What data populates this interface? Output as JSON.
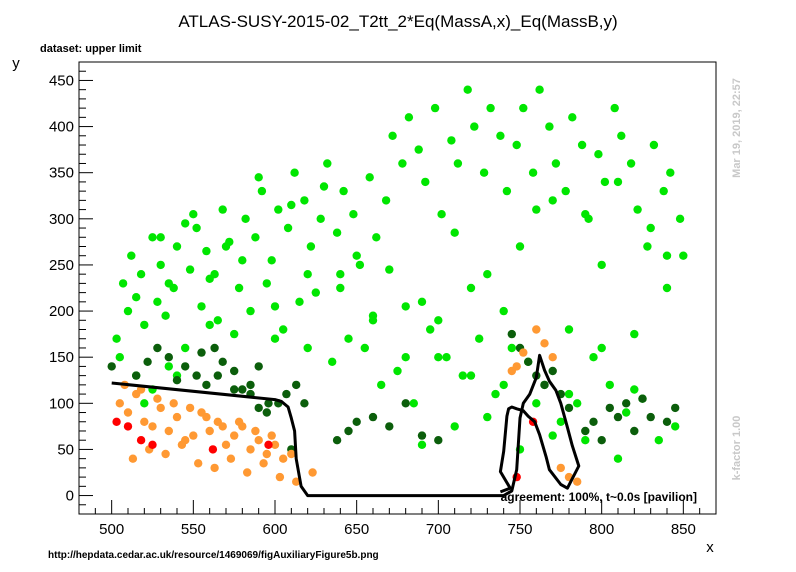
{
  "chart_data": {
    "type": "scatter",
    "title": "ATLAS-SUSY-2015-02_T2tt_2*Eq(MassA,x)_Eq(MassB,y)",
    "subtitle": "dataset: upper limit",
    "xlabel": "x",
    "ylabel": "y",
    "xlim": [
      480,
      870
    ],
    "ylim": [
      -20,
      470
    ],
    "xticks": [
      500,
      550,
      600,
      650,
      700,
      750,
      800,
      850
    ],
    "yticks": [
      0,
      50,
      100,
      150,
      200,
      250,
      300,
      350,
      400,
      450
    ],
    "grid": false,
    "legend": "none",
    "colors": {
      "bright_green": "#00e600",
      "dark_green": "#0b5e0b",
      "orange": "#ff9933",
      "red": "#ff0000",
      "contour": "#000000"
    },
    "series": [
      {
        "color": "bright_green",
        "x": [
          503,
          507,
          510,
          515,
          520,
          512,
          518,
          525,
          530,
          535,
          540,
          545,
          528,
          533,
          538,
          548,
          552,
          558,
          563,
          568,
          572,
          578,
          582,
          588,
          592,
          598,
          602,
          608,
          612,
          618,
          622,
          628,
          632,
          638,
          642,
          648,
          652,
          658,
          662,
          668,
          672,
          678,
          682,
          688,
          692,
          698,
          702,
          708,
          712,
          718,
          722,
          728,
          732,
          738,
          742,
          748,
          752,
          758,
          762,
          768,
          772,
          778,
          782,
          788,
          792,
          798,
          802,
          808,
          812,
          818,
          822,
          828,
          832,
          838,
          842,
          848,
          505,
          515,
          525,
          535,
          545,
          555,
          565,
          575,
          585,
          595,
          605,
          615,
          625,
          635,
          645,
          655,
          665,
          675,
          685,
          695,
          705,
          715,
          725,
          735,
          745,
          755,
          765,
          775,
          785,
          795,
          805,
          815,
          825,
          835,
          845,
          520,
          540,
          560,
          580,
          600,
          620,
          640,
          660,
          680,
          700,
          720,
          740,
          760,
          780,
          800,
          820,
          840,
          530,
          550,
          570,
          590,
          610,
          630,
          650,
          670,
          690,
          710,
          730,
          750,
          770,
          790,
          810,
          830,
          850,
          560,
          600,
          640,
          680,
          720,
          760,
          800,
          840,
          620,
          660,
          700,
          740,
          780,
          820,
          690,
          730,
          770,
          810,
          710,
          750,
          790
        ],
        "y": [
          170,
          230,
          200,
          215,
          185,
          260,
          240,
          280,
          250,
          230,
          270,
          295,
          210,
          195,
          225,
          245,
          290,
          265,
          240,
          310,
          275,
          225,
          300,
          280,
          330,
          255,
          310,
          290,
          350,
          320,
          270,
          300,
          360,
          285,
          330,
          305,
          250,
          345,
          280,
          320,
          390,
          360,
          410,
          375,
          340,
          420,
          305,
          385,
          360,
          440,
          400,
          350,
          420,
          390,
          330,
          380,
          420,
          350,
          440,
          400,
          360,
          330,
          410,
          380,
          300,
          370,
          340,
          420,
          390,
          360,
          310,
          270,
          380,
          330,
          350,
          300,
          150,
          130,
          115,
          140,
          160,
          205,
          190,
          175,
          200,
          230,
          180,
          210,
          220,
          145,
          170,
          160,
          120,
          135,
          100,
          180,
          150,
          130,
          170,
          110,
          160,
          145,
          120,
          80,
          100,
          150,
          120,
          90,
          105,
          60,
          75,
          100,
          130,
          235,
          255,
          170,
          240,
          225,
          195,
          150,
          190,
          130,
          120,
          100,
          110,
          160,
          175,
          260,
          280,
          305,
          270,
          345,
          315,
          335,
          260,
          245,
          210,
          285,
          240,
          270,
          320,
          305,
          340,
          290,
          260,
          185,
          205,
          240,
          205,
          225,
          310,
          250,
          225,
          160,
          190,
          150,
          200,
          180,
          115,
          55,
          85,
          65,
          40,
          75,
          50,
          60
        ]
      },
      {
        "color": "dark_green",
        "x": [
          515,
          522,
          528,
          535,
          540,
          545,
          552,
          558,
          563,
          568,
          575,
          580,
          585,
          590,
          596,
          602,
          607,
          613,
          618,
          555,
          565,
          575,
          585,
          595,
          638,
          645,
          650,
          660,
          670,
          680,
          690,
          700,
          745,
          750,
          755,
          760,
          765,
          770,
          775,
          780,
          790,
          795,
          800,
          805,
          810,
          815,
          820,
          825,
          830,
          840,
          845,
          500,
          590,
          610
        ],
        "y": [
          130,
          145,
          160,
          150,
          125,
          140,
          130,
          120,
          160,
          145,
          135,
          115,
          120,
          140,
          100,
          100,
          110,
          120,
          100,
          155,
          130,
          115,
          110,
          90,
          60,
          70,
          80,
          85,
          75,
          100,
          65,
          60,
          175,
          160,
          145,
          130,
          120,
          135,
          110,
          95,
          70,
          80,
          60,
          95,
          85,
          100,
          70,
          105,
          85,
          80,
          95,
          140,
          95,
          50
        ]
      },
      {
        "color": "orange",
        "x": [
          505,
          510,
          515,
          520,
          525,
          530,
          535,
          540,
          545,
          550,
          555,
          560,
          565,
          570,
          575,
          580,
          585,
          590,
          595,
          600,
          605,
          610,
          508,
          518,
          528,
          538,
          548,
          558,
          568,
          578,
          588,
          598,
          513,
          523,
          533,
          543,
          553,
          563,
          573,
          583,
          593,
          603,
          613,
          623,
          760,
          765,
          770,
          752,
          748,
          745,
          775,
          780,
          785
        ],
        "y": [
          100,
          90,
          110,
          80,
          75,
          95,
          70,
          85,
          60,
          65,
          90,
          70,
          80,
          55,
          65,
          75,
          50,
          60,
          45,
          55,
          40,
          45,
          120,
          115,
          105,
          100,
          95,
          85,
          75,
          80,
          70,
          65,
          40,
          50,
          45,
          55,
          35,
          30,
          40,
          25,
          35,
          20,
          15,
          25,
          180,
          165,
          150,
          155,
          140,
          135,
          30,
          20,
          15
        ]
      },
      {
        "color": "red",
        "x": [
          503,
          510,
          518,
          525,
          562,
          596,
          748,
          758
        ],
        "y": [
          80,
          75,
          60,
          55,
          50,
          55,
          20,
          80
        ]
      }
    ],
    "contour": {
      "x": [
        500,
        600,
        604,
        608,
        610,
        612,
        613,
        616,
        620,
        740,
        745,
        748,
        750,
        752,
        756,
        760,
        762,
        765,
        768,
        772,
        775,
        779,
        782,
        786,
        779,
        777,
        775,
        768,
        766,
        762,
        759,
        755,
        752,
        748,
        745,
        743,
        742,
        740,
        738,
        744,
        738
      ],
      "y": [
        122,
        104,
        102,
        96,
        84,
        70,
        40,
        10,
        0,
        0,
        5,
        28,
        84,
        100,
        110,
        128,
        152,
        136,
        124,
        114,
        100,
        74,
        54,
        32,
        8,
        10,
        12,
        28,
        42,
        66,
        80,
        86,
        92,
        94,
        96,
        94,
        86,
        48,
        26,
        8,
        4
      ]
    },
    "annotations": {
      "agreement": "agreement: 100%, t~0.0s [pavilion]",
      "k_factor": "k-factor 1.00",
      "date": "Mar 19, 2019, 22:57",
      "url": "http://hepdata.cedar.ac.uk/resource/1469069/figAuxiliaryFigure5b.png"
    }
  }
}
